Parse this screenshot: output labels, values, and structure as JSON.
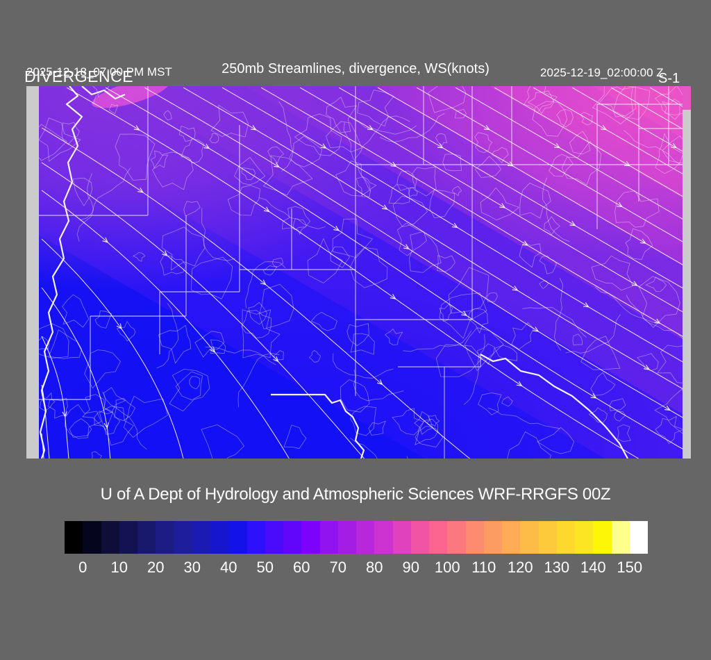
{
  "header": {
    "left_timestamp": "2025-12-18_07:00 PM MST",
    "field_label": "DIVERGENCE",
    "title": "250mb Streamlines, divergence, WS(knots)",
    "right_timestamp": "2025-12-19_02:00:00 Z",
    "units_label": "S-1"
  },
  "caption": "U of A Dept of Hydrology and Atmospheric Sciences WRF-RRGFS 00Z",
  "colorbar": {
    "tick_labels": [
      "0",
      "10",
      "20",
      "30",
      "40",
      "50",
      "60",
      "70",
      "80",
      "90",
      "100",
      "110",
      "120",
      "130",
      "140",
      "150"
    ],
    "segment_colors": [
      "#000000",
      "#05051e",
      "#0e0e38",
      "#131352",
      "#17176b",
      "#1c1c84",
      "#1e1e9c",
      "#1b1bb4",
      "#1616cf",
      "#1111e8",
      "#2c0ffb",
      "#4a0bfd",
      "#6206fb",
      "#7d02fb",
      "#9013f0",
      "#a31de5",
      "#b827da",
      "#cc32cf",
      "#e041bd",
      "#f254a5",
      "#fa648f",
      "#fd777e",
      "#fd8b70",
      "#fd9c62",
      "#fdac55",
      "#fdbb48",
      "#fdca3b",
      "#fdd92e",
      "#fce522",
      "#fef607",
      "#ffff8e",
      "#ffffff"
    ]
  },
  "map_colors": {
    "background_gray": "#666666",
    "domain_edge_gray": "#cbcbcb",
    "low_wind_blue": "#1511f4",
    "mid_wind_violet": "#5c22ec",
    "high_wind_magenta": "#e04bcb",
    "line_white": "#ffffff"
  }
}
